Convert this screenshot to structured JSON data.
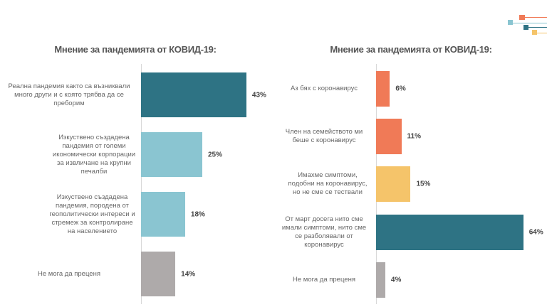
{
  "colors": {
    "teal": "#2e7384",
    "lightblue": "#8ac5d1",
    "gray": "#aeaaaa",
    "orange": "#f07a57",
    "yellow": "#f5c46a"
  },
  "chart_data": [
    {
      "type": "bar",
      "orientation": "horizontal",
      "title": "Мнение за пандемията от КОВИД-19:",
      "categories": [
        "Реална пандемия както са възниквали много други и с която трябва да се преборим",
        "Изкуствено създадена пандемия от големи икономически корпорации за извличане на крупни печалби",
        "Изкуствено създадена пандемия, породена от геополитически интереси и стремеж за контролиране на населението",
        "Не мога да преценя"
      ],
      "values": [
        43,
        25,
        18,
        14
      ],
      "labels": [
        "43%",
        "25%",
        "18%",
        "14%"
      ],
      "bar_colors": [
        "#2e7384",
        "#8ac5d1",
        "#8ac5d1",
        "#aeaaaa"
      ],
      "unit": "%"
    },
    {
      "type": "bar",
      "orientation": "horizontal",
      "title": "Мнение за пандемията от КОВИД-19:",
      "categories": [
        "Аз бях с коронавирус",
        "Член на семейството ми беше с коронавирус",
        "Имахме симптоми, подобни на коронавирус, но не сме се тествали",
        "От март досега нито сме имали симптоми, нито сме се разболявали от коронавирус",
        "Не мога да преценя"
      ],
      "values": [
        6,
        11,
        15,
        64,
        4
      ],
      "labels": [
        "6%",
        "11%",
        "15%",
        "64%",
        "4%"
      ],
      "bar_colors": [
        "#f07a57",
        "#f07a57",
        "#f5c46a",
        "#2e7384",
        "#aeaaaa"
      ],
      "unit": "%"
    }
  ]
}
